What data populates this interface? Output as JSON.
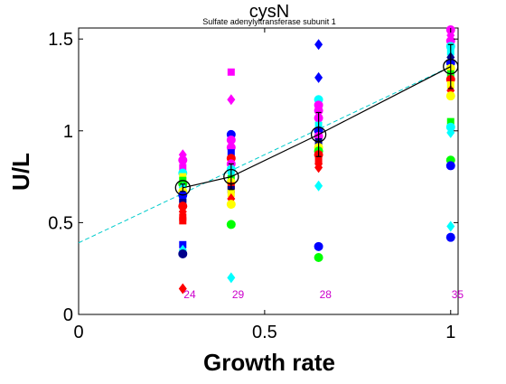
{
  "chart_data": {
    "type": "scatter",
    "title": "cysN",
    "subtitle": "Sulfate adenylyltransferase subunit 1",
    "xlabel": "Growth rate",
    "ylabel": "U/L",
    "xlim": [
      0,
      1.02
    ],
    "ylim": [
      0,
      1.56
    ],
    "xticks": [
      {
        "v": 0,
        "label": "0"
      },
      {
        "v": 0.5,
        "label": "0.5"
      },
      {
        "v": 1,
        "label": "1"
      }
    ],
    "yticks": [
      {
        "v": 0,
        "label": "0"
      },
      {
        "v": 0.5,
        "label": "0.5"
      },
      {
        "v": 1,
        "label": "1"
      },
      {
        "v": 1.5,
        "label": "1.5"
      }
    ],
    "grid": false,
    "colors": {
      "blue": "#0000ff",
      "darkblue": "#00008b",
      "red": "#ff0000",
      "green": "#00ff00",
      "cyan": "#00ffff",
      "magenta": "#ff00ff",
      "yellow": "#ffff00",
      "fit": "#00cccc",
      "count": "#cc00cc"
    },
    "groups": [
      {
        "x": 0.28,
        "mean": 0.69,
        "err": 0.02,
        "count": "24",
        "points": [
          {
            "y": 0.87,
            "color": "magenta",
            "marker": "diamond"
          },
          {
            "y": 0.84,
            "color": "magenta",
            "marker": "circle"
          },
          {
            "y": 0.8,
            "color": "magenta",
            "marker": "square"
          },
          {
            "y": 0.77,
            "color": "cyan",
            "marker": "circle"
          },
          {
            "y": 0.75,
            "color": "yellow",
            "marker": "square"
          },
          {
            "y": 0.73,
            "color": "green",
            "marker": "square"
          },
          {
            "y": 0.71,
            "color": "green",
            "marker": "circle"
          },
          {
            "y": 0.69,
            "color": "cyan",
            "marker": "diamond"
          },
          {
            "y": 0.67,
            "color": "yellow",
            "marker": "circle"
          },
          {
            "y": 0.65,
            "color": "blue",
            "marker": "circle"
          },
          {
            "y": 0.63,
            "color": "blue",
            "marker": "square"
          },
          {
            "y": 0.61,
            "color": "darkblue",
            "marker": "square"
          },
          {
            "y": 0.59,
            "color": "red",
            "marker": "circle"
          },
          {
            "y": 0.56,
            "color": "red",
            "marker": "diamond"
          },
          {
            "y": 0.53,
            "color": "red",
            "marker": "square"
          },
          {
            "y": 0.51,
            "color": "red",
            "marker": "square"
          },
          {
            "y": 0.38,
            "color": "blue",
            "marker": "square"
          },
          {
            "y": 0.35,
            "color": "cyan",
            "marker": "diamond"
          },
          {
            "y": 0.33,
            "color": "darkblue",
            "marker": "circle"
          },
          {
            "y": 0.14,
            "color": "red",
            "marker": "diamond"
          }
        ]
      },
      {
        "x": 0.41,
        "mean": 0.75,
        "err": 0.07,
        "count": "29",
        "points": [
          {
            "y": 1.32,
            "color": "magenta",
            "marker": "square"
          },
          {
            "y": 1.17,
            "color": "magenta",
            "marker": "diamond"
          },
          {
            "y": 0.98,
            "color": "blue",
            "marker": "circle"
          },
          {
            "y": 0.95,
            "color": "magenta",
            "marker": "circle"
          },
          {
            "y": 0.91,
            "color": "magenta",
            "marker": "circle"
          },
          {
            "y": 0.88,
            "color": "blue",
            "marker": "square"
          },
          {
            "y": 0.85,
            "color": "red",
            "marker": "circle"
          },
          {
            "y": 0.82,
            "color": "magenta",
            "marker": "circle"
          },
          {
            "y": 0.79,
            "color": "cyan",
            "marker": "circle"
          },
          {
            "y": 0.77,
            "color": "cyan",
            "marker": "diamond"
          },
          {
            "y": 0.74,
            "color": "green",
            "marker": "square"
          },
          {
            "y": 0.72,
            "color": "yellow",
            "marker": "circle"
          },
          {
            "y": 0.7,
            "color": "red",
            "marker": "square"
          },
          {
            "y": 0.68,
            "color": "darkblue",
            "marker": "square"
          },
          {
            "y": 0.66,
            "color": "yellow",
            "marker": "square"
          },
          {
            "y": 0.63,
            "color": "red",
            "marker": "diamond"
          },
          {
            "y": 0.6,
            "color": "yellow",
            "marker": "circle"
          },
          {
            "y": 0.49,
            "color": "green",
            "marker": "circle"
          },
          {
            "y": 0.2,
            "color": "cyan",
            "marker": "diamond"
          }
        ]
      },
      {
        "x": 0.645,
        "mean": 0.98,
        "err": 0.12,
        "count": "28",
        "points": [
          {
            "y": 1.47,
            "color": "blue",
            "marker": "diamond"
          },
          {
            "y": 1.29,
            "color": "blue",
            "marker": "diamond"
          },
          {
            "y": 1.17,
            "color": "cyan",
            "marker": "circle"
          },
          {
            "y": 1.14,
            "color": "magenta",
            "marker": "circle"
          },
          {
            "y": 1.11,
            "color": "magenta",
            "marker": "circle"
          },
          {
            "y": 1.07,
            "color": "magenta",
            "marker": "circle"
          },
          {
            "y": 1.03,
            "color": "cyan",
            "marker": "square"
          },
          {
            "y": 1.0,
            "color": "blue",
            "marker": "circle"
          },
          {
            "y": 0.97,
            "color": "magenta",
            "marker": "circle"
          },
          {
            "y": 0.94,
            "color": "darkblue",
            "marker": "square"
          },
          {
            "y": 0.91,
            "color": "yellow",
            "marker": "circle"
          },
          {
            "y": 0.89,
            "color": "green",
            "marker": "circle"
          },
          {
            "y": 0.87,
            "color": "red",
            "marker": "circle"
          },
          {
            "y": 0.84,
            "color": "red",
            "marker": "square"
          },
          {
            "y": 0.82,
            "color": "red",
            "marker": "diamond"
          },
          {
            "y": 0.8,
            "color": "red",
            "marker": "diamond"
          },
          {
            "y": 0.7,
            "color": "cyan",
            "marker": "diamond"
          },
          {
            "y": 0.37,
            "color": "blue",
            "marker": "circle"
          },
          {
            "y": 0.31,
            "color": "green",
            "marker": "circle"
          }
        ]
      },
      {
        "x": 1.0,
        "mean": 1.35,
        "err": 0.12,
        "count": "35",
        "points": [
          {
            "y": 1.55,
            "color": "magenta",
            "marker": "circle"
          },
          {
            "y": 1.52,
            "color": "magenta",
            "marker": "diamond"
          },
          {
            "y": 1.49,
            "color": "magenta",
            "marker": "circle"
          },
          {
            "y": 1.46,
            "color": "cyan",
            "marker": "circle"
          },
          {
            "y": 1.43,
            "color": "cyan",
            "marker": "square"
          },
          {
            "y": 1.4,
            "color": "darkblue",
            "marker": "diamond"
          },
          {
            "y": 1.37,
            "color": "blue",
            "marker": "circle"
          },
          {
            "y": 1.34,
            "color": "yellow",
            "marker": "circle"
          },
          {
            "y": 1.31,
            "color": "green",
            "marker": "square"
          },
          {
            "y": 1.28,
            "color": "red",
            "marker": "circle"
          },
          {
            "y": 1.25,
            "color": "yellow",
            "marker": "square"
          },
          {
            "y": 1.22,
            "color": "red",
            "marker": "diamond"
          },
          {
            "y": 1.19,
            "color": "yellow",
            "marker": "circle"
          },
          {
            "y": 1.05,
            "color": "green",
            "marker": "square"
          },
          {
            "y": 1.02,
            "color": "cyan",
            "marker": "circle"
          },
          {
            "y": 0.99,
            "color": "cyan",
            "marker": "diamond"
          },
          {
            "y": 0.84,
            "color": "green",
            "marker": "circle"
          },
          {
            "y": 0.81,
            "color": "blue",
            "marker": "circle"
          },
          {
            "y": 0.48,
            "color": "cyan",
            "marker": "diamond"
          },
          {
            "y": 0.42,
            "color": "blue",
            "marker": "circle"
          }
        ]
      }
    ],
    "fit_line": {
      "x": [
        0,
        1.0
      ],
      "y": [
        0.39,
        1.35
      ],
      "style": "dashed",
      "color": "fit"
    }
  }
}
